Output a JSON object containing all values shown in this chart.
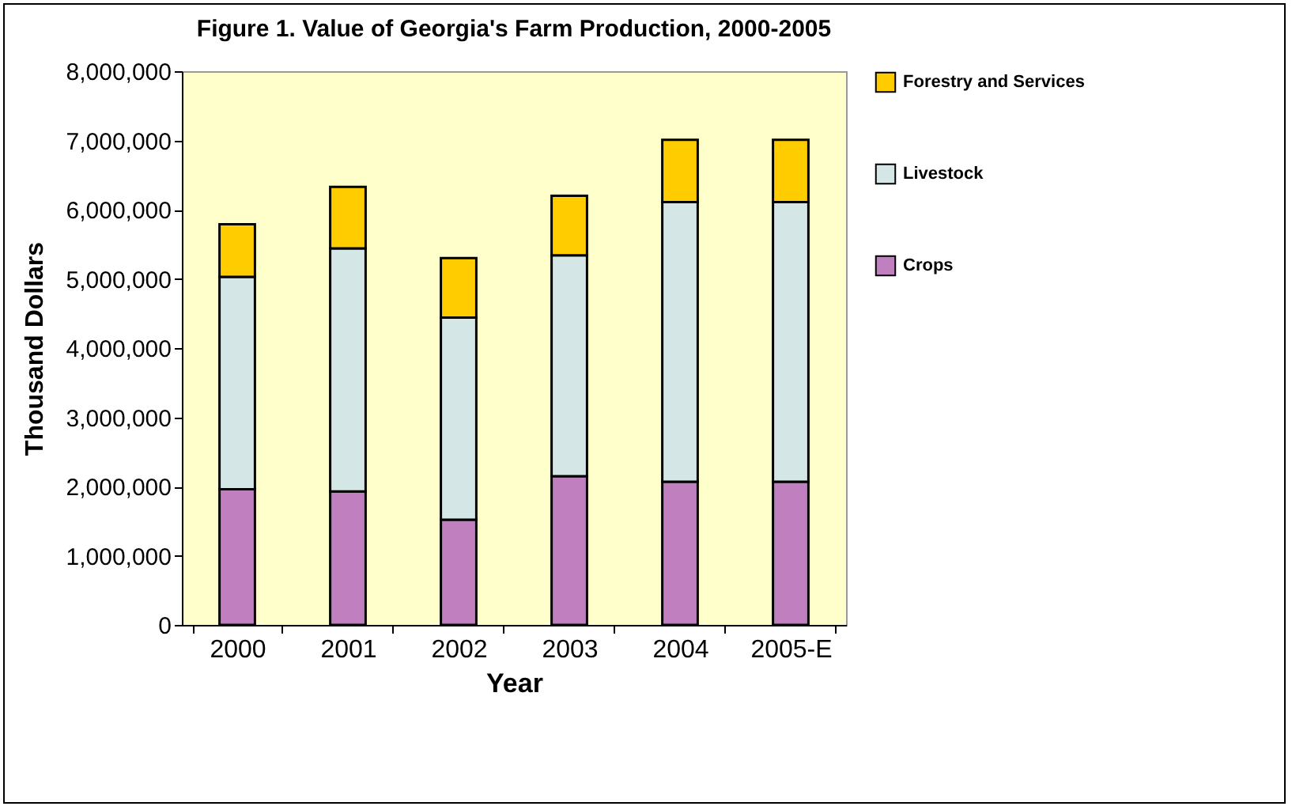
{
  "chart_data": {
    "type": "bar",
    "title": "Figure 1.  Value of Georgia's Farm Production, 2000-2005",
    "xlabel": "Year",
    "ylabel": "Thousand Dollars",
    "categories": [
      "2000",
      "2001",
      "2002",
      "2003",
      "2004",
      "2005-E"
    ],
    "stacked": true,
    "series": [
      {
        "name": "Crops",
        "color": "#c080c0",
        "values": [
          1960000,
          1930000,
          1520000,
          2150000,
          2070000,
          2070000
        ]
      },
      {
        "name": "Livestock",
        "color": "#d4e6e6",
        "values": [
          3070000,
          3510000,
          2920000,
          3190000,
          4040000,
          4040000
        ]
      },
      {
        "name": "Forestry and Services",
        "color": "#ffcc00",
        "values": [
          760000,
          890000,
          860000,
          860000,
          900000,
          900000
        ]
      }
    ],
    "ylim": [
      0,
      8000000
    ],
    "yticks": [
      0,
      {
        "value": 1000000,
        "label": "1,000,000"
      },
      {
        "value": 2000000,
        "label": "2,000,000"
      },
      {
        "value": 3000000,
        "label": "3,000,000"
      },
      {
        "value": 4000000,
        "label": "4,000,000"
      },
      {
        "value": 5000000,
        "label": "5,000,000"
      },
      {
        "value": 6000000,
        "label": "6,000,000"
      },
      {
        "value": 7000000,
        "label": "7,000,000"
      },
      {
        "value": 8000000,
        "label": "8,000,000"
      }
    ],
    "grid": false,
    "legend": "right"
  }
}
